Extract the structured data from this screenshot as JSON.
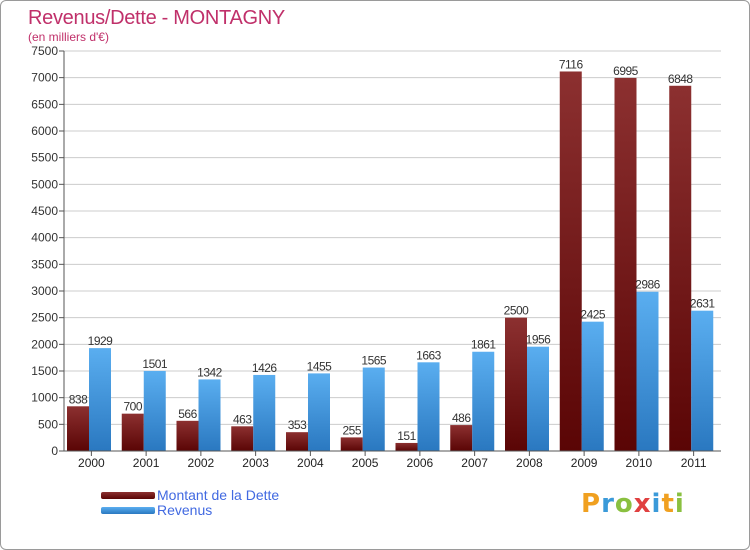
{
  "header": {
    "title": "Revenus/Dette - MONTAGNY",
    "subtitle": "(en milliers d'€)"
  },
  "colors": {
    "title": "#c0306a",
    "dette": "#7a1f1f",
    "revenus": "#3e96dc",
    "grid": "#cccccc"
  },
  "legend": {
    "items": [
      {
        "label": "Montant de la Dette",
        "color": "#6b0e0e"
      },
      {
        "label": "Revenus",
        "color": "#3e96dc"
      }
    ]
  },
  "logo": {
    "text": "Proxiti"
  },
  "chart_data": {
    "type": "bar",
    "title": "Revenus/Dette - MONTAGNY",
    "subtitle": "(en milliers d'€)",
    "categories": [
      "2000",
      "2001",
      "2002",
      "2003",
      "2004",
      "2005",
      "2006",
      "2007",
      "2008",
      "2009",
      "2010",
      "2011"
    ],
    "series": [
      {
        "name": "Montant de la Dette",
        "values": [
          838,
          700,
          566,
          463,
          353,
          255,
          151,
          486,
          2500,
          7116,
          6995,
          6848
        ]
      },
      {
        "name": "Revenus",
        "values": [
          1929,
          1501,
          1342,
          1426,
          1455,
          1565,
          1663,
          1861,
          1956,
          2425,
          2986,
          2631
        ]
      }
    ],
    "ylim": [
      0,
      7500
    ],
    "yticks": [
      0,
      500,
      1000,
      1500,
      2000,
      2500,
      3000,
      3500,
      4000,
      4500,
      5000,
      5500,
      6000,
      6500,
      7000,
      7500
    ],
    "grid": true,
    "legend_position": "bottom-left"
  }
}
